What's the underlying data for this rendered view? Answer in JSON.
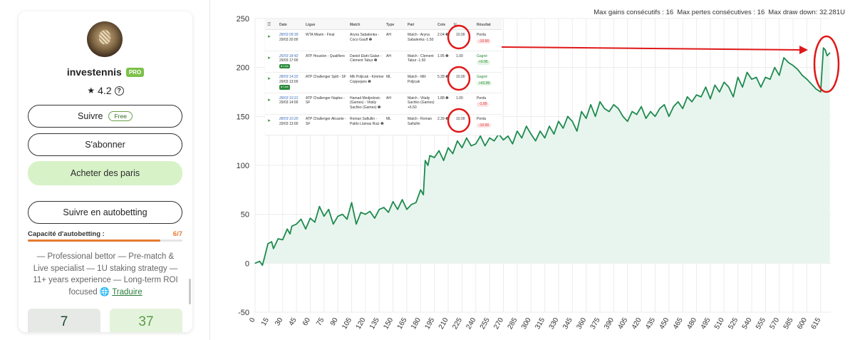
{
  "profile": {
    "name": "investennis",
    "badge": "PRO",
    "rating": "4.2",
    "rating_help": "?",
    "star_icon": "★",
    "follow_label": "Suivre",
    "follow_badge": "Free",
    "subscribe_label": "S'abonner",
    "buy_label": "Acheter des paris",
    "autobet_label": "Suivre en autobetting",
    "capacity_label": "Capacité d'autobetting :",
    "capacity_value": "6/7",
    "capacity_fraction": 0.857,
    "bio": "— Professional bettor — Pre-match & Live specialist — 1U staking strategy — 11+ years experience — Long-term ROI focused",
    "globe_icon": "🌐",
    "translate_label": "Traduire",
    "stat1_value": "7",
    "stat2_value": "37",
    "colors": {
      "pro": "#7cc04b",
      "green_button": "#d8f2c8",
      "capacity": "#e67a2e"
    }
  },
  "chart_header": {
    "max_gains": "Max gains consécutifs : 16",
    "max_losses": "Max pertes consécutives : 16",
    "max_drawdown": "Max draw down: 32.281U"
  },
  "bets_table": {
    "headers": [
      "Date",
      "Ligue",
      "Match",
      "Type",
      "Pari",
      "Cote",
      "U.",
      "Résultat"
    ],
    "rows": [
      {
        "date1": "28/03 09:39",
        "date2": "29/03 20:00",
        "live": "",
        "league": "WTA Miami - Final",
        "match": "Aryna Sabalenka - Coco Gauff ❶",
        "type": "AH",
        "bet": "Match - Aryna Sabalenka -1.50",
        "odds": "2.04 ❶",
        "units": "10.00",
        "result": "Perdu",
        "pnl": "-10.00"
      },
      {
        "date1": "26/03 18:42",
        "date2": "29/03 17:00",
        "live": "● Live",
        "league": "ATP Houston - Qualifiers",
        "match": "Daniel Elahi Galan - Clement Tabur ❶",
        "type": "AH",
        "bet": "Match - Clement Tabur -1.50",
        "odds": "1.95 ❶",
        "units": "1.00",
        "result": "Gagné",
        "pnl": "+0.95"
      },
      {
        "date1": "28/03 14:22",
        "date2": "29/03 13:00",
        "live": "● Live",
        "league": "ATP Challenger Split - SF",
        "match": "Mili Poljicak - Kimmer Coppejans ❶",
        "type": "ML",
        "bet": "Match - Mili Poljicak",
        "odds": "5.28 ❶",
        "units": "10.00",
        "result": "Gagné",
        "pnl": "+42.80"
      },
      {
        "date1": "28/03 10:21",
        "date2": "29/03 14:00",
        "live": "",
        "league": "ATP Challenger Naples - SF",
        "match": "Hamad Medjedovic (Games) - Vitaliy Sachko (Games) ❶",
        "type": "AH",
        "bet": "Match - Vitaliy Sachko (Games) +6.50",
        "odds": "1.88 ❶",
        "units": "1.00",
        "result": "Perdu",
        "pnl": "-1.00"
      },
      {
        "date1": "28/03 10:20",
        "date2": "29/03 13:00",
        "live": "",
        "league": "ATP Challenger Alicante - SF",
        "match": "Roman Safiullin - Pablo Llamas Ruiz ❶",
        "type": "ML",
        "bet": "Match - Roman Safiullin",
        "odds": "2.39 ❶",
        "units": "10.00",
        "result": "Perdu",
        "pnl": "-10.00"
      }
    ]
  },
  "chart_data": {
    "type": "area",
    "title": "",
    "xlabel": "",
    "ylabel": "",
    "xlim": [
      0,
      626
    ],
    "ylim": [
      -50,
      250
    ],
    "y_ticks": [
      -50,
      0,
      50,
      100,
      150,
      200,
      250
    ],
    "x_ticks": [
      0,
      15,
      30,
      45,
      60,
      75,
      90,
      105,
      120,
      135,
      150,
      165,
      180,
      195,
      210,
      225,
      240,
      255,
      270,
      285,
      300,
      315,
      330,
      345,
      360,
      375,
      390,
      405,
      420,
      435,
      450,
      465,
      480,
      495,
      510,
      525,
      540,
      555,
      570,
      585,
      600,
      615
    ],
    "grid": true,
    "line_color": "#1e8a4e",
    "fill_color": "#e8f5ee",
    "series": [
      {
        "x": [
          0,
          5,
          8,
          10,
          14,
          18,
          20,
          25,
          30,
          35,
          38,
          40,
          45,
          50,
          55,
          60,
          65,
          70,
          75,
          80,
          85,
          90,
          95,
          100,
          105,
          110,
          115,
          120,
          125,
          130,
          135,
          140,
          145,
          150,
          155,
          160,
          165,
          170,
          175,
          180,
          183,
          185,
          188,
          190,
          195,
          200,
          205,
          210,
          215,
          220,
          225,
          230,
          235,
          240,
          245,
          250,
          255,
          260,
          265,
          270,
          275,
          280,
          285,
          290,
          295,
          300,
          305,
          310,
          315,
          320,
          325,
          330,
          335,
          340,
          345,
          350,
          355,
          360,
          365,
          370,
          375,
          380,
          385,
          390,
          395,
          400,
          405,
          410,
          415,
          420,
          425,
          430,
          435,
          440,
          445,
          450,
          455,
          460,
          465,
          470,
          475,
          480,
          485,
          490,
          495,
          500,
          505,
          510,
          515,
          520,
          525,
          530,
          535,
          540,
          545,
          550,
          555,
          560,
          565,
          570,
          575,
          580,
          585,
          590,
          595,
          600,
          605,
          610,
          615,
          618,
          620,
          622,
          625
        ],
        "values": [
          0,
          2,
          -2,
          5,
          20,
          22,
          15,
          25,
          24,
          35,
          30,
          38,
          40,
          45,
          35,
          46,
          42,
          58,
          48,
          55,
          40,
          48,
          50,
          45,
          62,
          40,
          52,
          50,
          53,
          46,
          55,
          57,
          52,
          63,
          55,
          65,
          55,
          60,
          62,
          75,
          70,
          105,
          100,
          110,
          108,
          115,
          105,
          118,
          112,
          125,
          118,
          128,
          120,
          122,
          130,
          120,
          128,
          125,
          132,
          126,
          130,
          122,
          135,
          128,
          140,
          132,
          125,
          135,
          128,
          140,
          132,
          145,
          138,
          150,
          145,
          135,
          155,
          148,
          162,
          150,
          165,
          158,
          155,
          162,
          158,
          150,
          145,
          155,
          152,
          160,
          148,
          155,
          150,
          158,
          162,
          150,
          160,
          165,
          158,
          170,
          165,
          172,
          170,
          180,
          168,
          182,
          175,
          185,
          180,
          170,
          190,
          180,
          195,
          188,
          190,
          180,
          190,
          188,
          200,
          192,
          210,
          205,
          202,
          198,
          192,
          188,
          183,
          178,
          175,
          220,
          218,
          212,
          215
        ]
      }
    ]
  }
}
